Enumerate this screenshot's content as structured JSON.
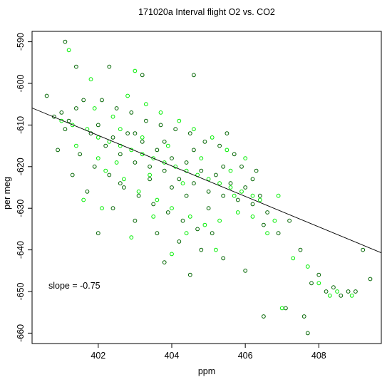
{
  "chart_data": {
    "type": "scatter",
    "title": "171020a   Interval flight O2 vs. CO2",
    "xlabel": "ppm",
    "ylabel": "per meg",
    "xlim": [
      400.2,
      409.7
    ],
    "ylim": [
      -662.5,
      -587.5
    ],
    "x_ticks": [
      402,
      404,
      406,
      408
    ],
    "y_ticks": [
      -590,
      -600,
      -610,
      -620,
      -630,
      -640,
      -650,
      -660
    ],
    "grid": false,
    "legend": "none",
    "annotation": "slope =  -0.75",
    "fit_line": {
      "slope": -0.75,
      "points": [
        [
          400.2,
          -605.9
        ],
        [
          409.7,
          -640.7
        ]
      ]
    },
    "colors": {
      "series_a": "#006400",
      "series_b": "#00ee00",
      "line": "#000000"
    },
    "series": [
      {
        "points": [
          [
            400.8,
            -608
          ],
          [
            401.0,
            -607
          ],
          [
            401.2,
            -609
          ],
          [
            401.4,
            -606
          ],
          [
            401.1,
            -611
          ],
          [
            401.6,
            -604
          ],
          [
            401.8,
            -612
          ],
          [
            402.0,
            -610
          ],
          [
            402.2,
            -615
          ],
          [
            402.4,
            -613
          ],
          [
            402.6,
            -617
          ],
          [
            402.8,
            -612
          ],
          [
            403.0,
            -619
          ],
          [
            403.2,
            -614
          ],
          [
            403.4,
            -620
          ],
          [
            403.6,
            -616
          ],
          [
            403.8,
            -621
          ],
          [
            404.0,
            -618
          ],
          [
            404.2,
            -623
          ],
          [
            404.4,
            -619
          ],
          [
            404.6,
            -624
          ],
          [
            404.8,
            -621
          ],
          [
            405.0,
            -626
          ],
          [
            405.2,
            -622
          ],
          [
            405.4,
            -627
          ],
          [
            405.6,
            -624
          ],
          [
            405.8,
            -628
          ],
          [
            406.0,
            -625
          ],
          [
            406.2,
            -629
          ],
          [
            406.4,
            -627
          ],
          [
            401.5,
            -617
          ],
          [
            401.9,
            -620
          ],
          [
            402.3,
            -622
          ],
          [
            402.7,
            -625
          ],
          [
            403.1,
            -627
          ],
          [
            403.5,
            -629
          ],
          [
            403.9,
            -631
          ],
          [
            404.3,
            -633
          ],
          [
            404.7,
            -635
          ],
          [
            405.1,
            -636
          ],
          [
            402.1,
            -604
          ],
          [
            402.5,
            -606
          ],
          [
            402.9,
            -607
          ],
          [
            403.3,
            -609
          ],
          [
            403.7,
            -610
          ],
          [
            404.1,
            -611
          ],
          [
            404.5,
            -612
          ],
          [
            404.9,
            -614
          ],
          [
            405.3,
            -615
          ],
          [
            405.7,
            -617
          ],
          [
            401.3,
            -622
          ],
          [
            401.7,
            -626
          ],
          [
            402.4,
            -630
          ],
          [
            403.0,
            -633
          ],
          [
            403.6,
            -636
          ],
          [
            404.2,
            -638
          ],
          [
            404.8,
            -640
          ],
          [
            405.4,
            -642
          ],
          [
            406.0,
            -645
          ],
          [
            406.5,
            -634
          ],
          [
            400.6,
            -603
          ],
          [
            400.9,
            -616
          ],
          [
            401.1,
            -590
          ],
          [
            401.4,
            -596
          ],
          [
            402.3,
            -596
          ],
          [
            403.2,
            -598
          ],
          [
            404.6,
            -598
          ],
          [
            405.5,
            -612
          ],
          [
            405.9,
            -620
          ],
          [
            406.3,
            -621
          ],
          [
            406.6,
            -631
          ],
          [
            406.9,
            -636
          ],
          [
            407.2,
            -633
          ],
          [
            407.5,
            -640
          ],
          [
            407.8,
            -648
          ],
          [
            408.0,
            -646
          ],
          [
            408.2,
            -650
          ],
          [
            408.4,
            -649
          ],
          [
            408.6,
            -651
          ],
          [
            408.8,
            -650
          ],
          [
            409.0,
            -650
          ],
          [
            409.2,
            -640
          ],
          [
            409.4,
            -647
          ],
          [
            407.1,
            -654
          ],
          [
            407.6,
            -656
          ],
          [
            407.7,
            -660
          ],
          [
            406.5,
            -656
          ],
          [
            404.5,
            -646
          ],
          [
            403.8,
            -643
          ],
          [
            402.0,
            -636
          ],
          [
            402.6,
            -624
          ],
          [
            403.4,
            -623
          ],
          [
            404.0,
            -625
          ],
          [
            404.4,
            -627
          ],
          [
            405.0,
            -630
          ],
          [
            403.0,
            -612
          ],
          [
            403.8,
            -614
          ],
          [
            404.6,
            -616
          ],
          [
            405.4,
            -620
          ],
          [
            406.2,
            -623
          ]
        ]
      },
      {
        "points": [
          [
            401.0,
            -609
          ],
          [
            401.3,
            -610
          ],
          [
            401.7,
            -611
          ],
          [
            402.0,
            -613
          ],
          [
            402.3,
            -614
          ],
          [
            402.6,
            -615
          ],
          [
            402.9,
            -616
          ],
          [
            403.2,
            -617
          ],
          [
            403.5,
            -618
          ],
          [
            403.8,
            -619
          ],
          [
            404.1,
            -620
          ],
          [
            404.4,
            -621
          ],
          [
            404.7,
            -622
          ],
          [
            405.0,
            -623
          ],
          [
            405.3,
            -624
          ],
          [
            405.6,
            -625
          ],
          [
            405.9,
            -626
          ],
          [
            406.2,
            -627
          ],
          [
            401.9,
            -606
          ],
          [
            402.4,
            -608
          ],
          [
            402.8,
            -603
          ],
          [
            403.3,
            -605
          ],
          [
            403.7,
            -607
          ],
          [
            404.2,
            -609
          ],
          [
            404.6,
            -611
          ],
          [
            405.1,
            -613
          ],
          [
            405.5,
            -616
          ],
          [
            402.2,
            -621
          ],
          [
            402.7,
            -623
          ],
          [
            403.1,
            -626
          ],
          [
            403.6,
            -628
          ],
          [
            404.0,
            -630
          ],
          [
            404.5,
            -632
          ],
          [
            404.9,
            -634
          ],
          [
            405.3,
            -633
          ],
          [
            405.8,
            -631
          ],
          [
            406.2,
            -632
          ],
          [
            406.6,
            -636
          ],
          [
            406.9,
            -627
          ],
          [
            402.1,
            -630
          ],
          [
            401.2,
            -592
          ],
          [
            401.8,
            -599
          ],
          [
            403.0,
            -597
          ],
          [
            406.4,
            -628
          ],
          [
            406.8,
            -633
          ],
          [
            407.3,
            -642
          ],
          [
            407.7,
            -644
          ],
          [
            408.0,
            -648
          ],
          [
            408.3,
            -651
          ],
          [
            408.5,
            -650
          ],
          [
            408.9,
            -651
          ],
          [
            407.0,
            -654
          ],
          [
            405.2,
            -640
          ],
          [
            404.0,
            -641
          ],
          [
            402.9,
            -637
          ],
          [
            401.6,
            -628
          ],
          [
            402.5,
            -619
          ],
          [
            403.4,
            -622
          ],
          [
            404.3,
            -624
          ],
          [
            405.7,
            -627
          ],
          [
            401.4,
            -615
          ],
          [
            402.0,
            -618
          ],
          [
            402.6,
            -611
          ],
          [
            403.2,
            -613
          ],
          [
            403.9,
            -615
          ],
          [
            404.8,
            -618
          ],
          [
            405.6,
            -621
          ],
          [
            406.0,
            -618
          ],
          [
            403.5,
            -632
          ],
          [
            404.4,
            -636
          ]
        ]
      }
    ]
  }
}
